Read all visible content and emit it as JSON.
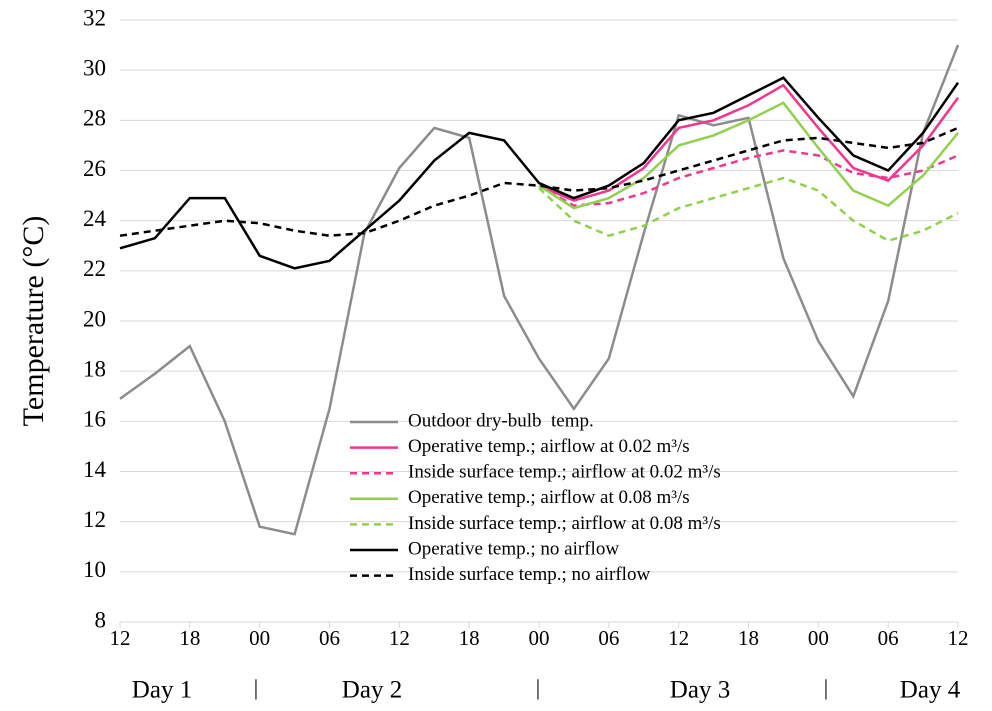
{
  "chart_data": {
    "type": "line",
    "ylabel": "Temperature (°C)",
    "x": [
      0,
      3,
      6,
      9,
      12,
      15,
      18,
      21,
      24,
      27,
      30,
      33,
      36,
      39,
      42,
      45,
      48,
      51,
      54,
      57,
      60,
      63,
      66,
      69,
      72
    ],
    "xlim": [
      0,
      72
    ],
    "xticks": [
      {
        "value": 0,
        "label": "12"
      },
      {
        "value": 6,
        "label": "18"
      },
      {
        "value": 12,
        "label": "00"
      },
      {
        "value": 18,
        "label": "06"
      },
      {
        "value": 24,
        "label": "12"
      },
      {
        "value": 30,
        "label": "18"
      },
      {
        "value": 36,
        "label": "00"
      },
      {
        "value": 42,
        "label": "06"
      },
      {
        "value": 48,
        "label": "12"
      },
      {
        "value": 54,
        "label": "18"
      },
      {
        "value": 60,
        "label": "00"
      },
      {
        "value": 66,
        "label": "06"
      },
      {
        "value": 72,
        "label": "12"
      }
    ],
    "ylim": [
      8,
      32
    ],
    "yticks": [
      8,
      10,
      12,
      14,
      16,
      18,
      20,
      22,
      24,
      26,
      28,
      30,
      32
    ],
    "grid": true,
    "day_labels": [
      "Day 1",
      "Day 2",
      "Day 3",
      "Day 4"
    ],
    "series": [
      {
        "name": "Outdoor dry-bulb  temp.",
        "color": "#8c8c8c",
        "style": "solid",
        "values": [
          16.9,
          17.9,
          19.0,
          16.0,
          11.8,
          11.5,
          16.5,
          23.5,
          26.1,
          27.7,
          27.3,
          21.0,
          18.5,
          16.5,
          18.5,
          23.5,
          28.2,
          27.8,
          28.1,
          22.5,
          19.2,
          17.0,
          20.8,
          27.5,
          31.0
        ]
      },
      {
        "name": "Operative temp.; airflow at 0.02 m³/s",
        "color": "#f0368f",
        "style": "solid",
        "values": [
          null,
          null,
          null,
          null,
          null,
          null,
          null,
          null,
          null,
          null,
          null,
          null,
          25.4,
          24.8,
          25.2,
          26.1,
          27.7,
          28.0,
          28.6,
          29.4,
          27.7,
          26.1,
          25.6,
          27.0,
          28.9
        ]
      },
      {
        "name": "Inside surface temp.; airflow at 0.02 m³/s",
        "color": "#f0368f",
        "style": "dashed",
        "values": [
          null,
          null,
          null,
          null,
          null,
          null,
          null,
          null,
          null,
          null,
          null,
          null,
          25.4,
          24.6,
          24.7,
          25.1,
          25.7,
          26.1,
          26.5,
          26.8,
          26.6,
          25.9,
          25.7,
          26.0,
          26.6
        ]
      },
      {
        "name": "Operative temp.; airflow at 0.08 m³/s",
        "color": "#92d050",
        "style": "solid",
        "values": [
          null,
          null,
          null,
          null,
          null,
          null,
          null,
          null,
          null,
          null,
          null,
          null,
          25.4,
          24.5,
          24.9,
          25.7,
          27.0,
          27.4,
          28.0,
          28.7,
          26.9,
          25.2,
          24.6,
          25.8,
          27.5
        ]
      },
      {
        "name": "Inside surface temp.; airflow at 0.08 m³/s",
        "color": "#92d050",
        "style": "dashed",
        "values": [
          null,
          null,
          null,
          null,
          null,
          null,
          null,
          null,
          null,
          null,
          null,
          null,
          25.3,
          24.0,
          23.4,
          23.8,
          24.5,
          24.9,
          25.3,
          25.7,
          25.2,
          24.0,
          23.2,
          23.6,
          24.3
        ]
      },
      {
        "name": "Operative temp.; no airflow",
        "color": "#000000",
        "style": "solid",
        "values": [
          22.9,
          23.3,
          24.9,
          24.9,
          22.6,
          22.1,
          22.4,
          23.6,
          24.8,
          26.4,
          27.5,
          27.2,
          25.5,
          24.9,
          25.4,
          26.3,
          28.0,
          28.3,
          29.0,
          29.7,
          28.1,
          26.6,
          26.0,
          27.5,
          29.5
        ]
      },
      {
        "name": "Inside surface temp.; no airflow",
        "color": "#000000",
        "style": "dashed",
        "values": [
          23.4,
          23.6,
          23.8,
          24.0,
          23.9,
          23.6,
          23.4,
          23.5,
          24.0,
          24.6,
          25.0,
          25.5,
          25.4,
          25.2,
          25.3,
          25.6,
          26.0,
          26.4,
          26.8,
          27.2,
          27.3,
          27.1,
          26.9,
          27.1,
          27.7
        ]
      }
    ]
  }
}
